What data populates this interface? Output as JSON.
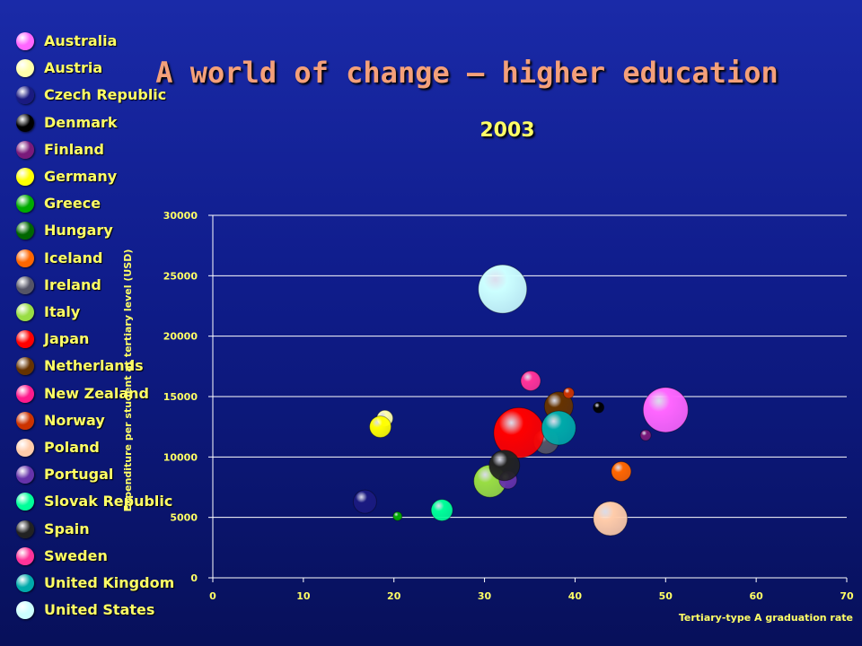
{
  "chart_data": {
    "type": "scatter",
    "title": "A world of change – higher education",
    "subtitle": "2003",
    "xlabel": "Tertiary-type A graduation rate",
    "ylabel": "Expenditure per student at tertiary level (USD)",
    "xlim": [
      0,
      70
    ],
    "ylim": [
      0,
      30000
    ],
    "xticks": [
      0,
      10,
      20,
      30,
      40,
      50,
      60,
      70
    ],
    "yticks": [
      0,
      5000,
      10000,
      15000,
      20000,
      25000,
      30000
    ],
    "grid": "horizontal",
    "legend_position": "left",
    "series": [
      {
        "name": "Australia",
        "color": "#ff66ff",
        "x": 50.0,
        "y": 13900,
        "size": 25
      },
      {
        "name": "Austria",
        "color": "#ffffaa",
        "x": 19.0,
        "y": 13200,
        "size": 9
      },
      {
        "name": "Czech Republic",
        "color": "#1a1a80",
        "x": 16.8,
        "y": 6300,
        "size": 13
      },
      {
        "name": "Denmark",
        "color": "#000000",
        "x": 42.6,
        "y": 14100,
        "size": 6
      },
      {
        "name": "Finland",
        "color": "#7a1a7a",
        "x": 47.8,
        "y": 11800,
        "size": 6
      },
      {
        "name": "Germany",
        "color": "#ffff00",
        "x": 18.5,
        "y": 12500,
        "size": 12
      },
      {
        "name": "Greece",
        "color": "#00aa00",
        "x": 20.4,
        "y": 5100,
        "size": 5
      },
      {
        "name": "Hungary",
        "color": "#006600",
        "x": 0,
        "y": 0,
        "size": 0
      },
      {
        "name": "Iceland",
        "color": "#ff6600",
        "x": 45.1,
        "y": 8800,
        "size": 11
      },
      {
        "name": "Ireland",
        "color": "#555566",
        "x": 36.8,
        "y": 11300,
        "size": 14
      },
      {
        "name": "Italy",
        "color": "#99dd44",
        "x": 30.6,
        "y": 8000,
        "size": 18
      },
      {
        "name": "Japan",
        "color": "#ff0000",
        "x": 33.8,
        "y": 12000,
        "size": 28
      },
      {
        "name": "Netherlands",
        "color": "#663300",
        "x": 38.2,
        "y": 14200,
        "size": 16
      },
      {
        "name": "New Zealand",
        "color": "#ff1a8c",
        "x": 0,
        "y": 0,
        "size": 0
      },
      {
        "name": "Norway",
        "color": "#cc3300",
        "x": 39.3,
        "y": 15300,
        "size": 6
      },
      {
        "name": "Poland",
        "color": "#ffccaa",
        "x": 43.9,
        "y": 4900,
        "size": 19
      },
      {
        "name": "Portugal",
        "color": "#6633aa",
        "x": 32.6,
        "y": 8100,
        "size": 10
      },
      {
        "name": "Slovak Republic",
        "color": "#00ff99",
        "x": 25.3,
        "y": 5600,
        "size": 12
      },
      {
        "name": "Spain",
        "color": "#222222",
        "x": 32.2,
        "y": 9300,
        "size": 17
      },
      {
        "name": "Sweden",
        "color": "#ff3399",
        "x": 35.1,
        "y": 16300,
        "size": 11
      },
      {
        "name": "United Kingdom",
        "color": "#00aaaa",
        "x": 38.2,
        "y": 12400,
        "size": 19
      },
      {
        "name": "United States",
        "color": "#ccffff",
        "x": 32.0,
        "y": 23900,
        "size": 27
      }
    ]
  }
}
